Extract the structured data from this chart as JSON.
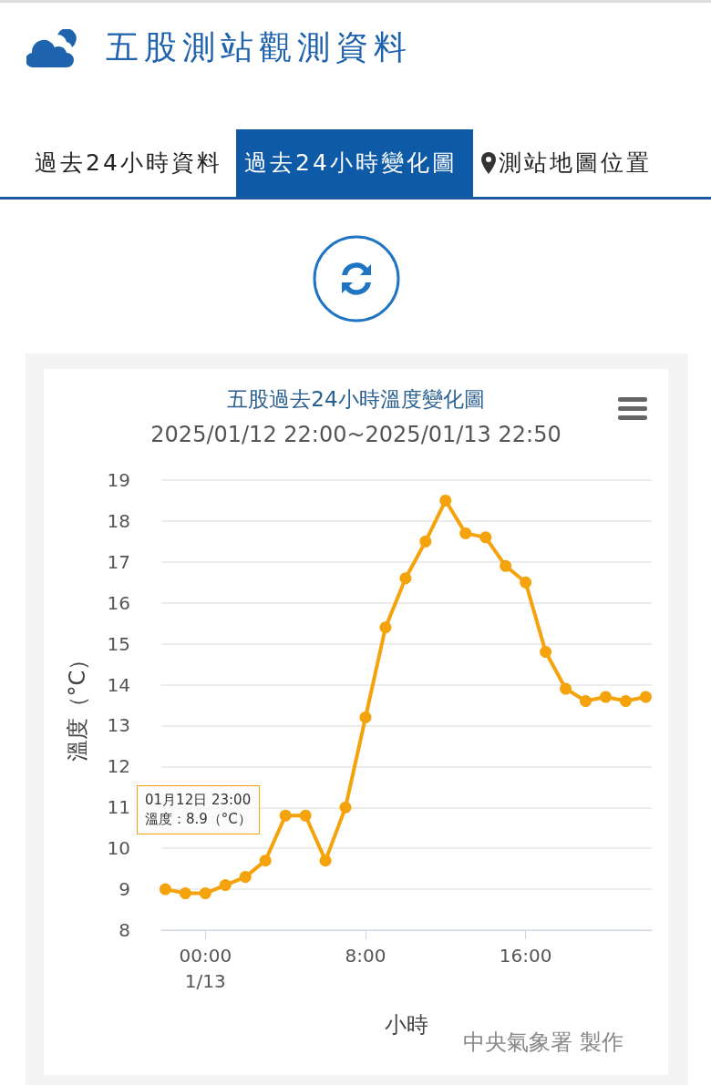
{
  "chart_data": {
    "type": "line",
    "title": "五股過去24小時溫度變化圖",
    "subtitle": "2025/01/12 22:00~2025/01/13 22:50",
    "xlabel": "小時",
    "ylabel": "溫度（°C）",
    "annotations": [
      "五股測站觀測資料",
      "過去24小時資料",
      "過去24小時變化圖",
      "測站地圖位置",
      "01月12日 23:00\n溫度：8.9（°C）",
      "中央氣象署 製作"
    ],
    "x": [
      -2,
      -1,
      0,
      1,
      2,
      3,
      4,
      5,
      6,
      7,
      8,
      9,
      10,
      11,
      12,
      13,
      14,
      15,
      16,
      17,
      18,
      19,
      20,
      21,
      22
    ],
    "series": [
      {
        "color": "#f5a30c",
        "values": [
          9.0,
          8.9,
          8.9,
          9.1,
          9.3,
          9.7,
          10.8,
          10.8,
          9.7,
          11.0,
          13.2,
          15.4,
          16.6,
          17.5,
          18.5,
          17.7,
          17.6,
          16.9,
          16.5,
          14.8,
          13.9,
          13.6,
          13.7,
          13.6,
          13.7
        ]
      }
    ],
    "xlim": [
      -2.2,
      22.3
    ],
    "xticks": [
      {
        "value": 0,
        "label": "00:00\n1/13"
      },
      {
        "value": 8,
        "label": "8:00"
      },
      {
        "value": 16,
        "label": "16:00"
      }
    ],
    "ylim": [
      8,
      19
    ],
    "yticks": [
      8,
      9,
      10,
      11,
      12,
      13,
      14,
      15,
      16,
      17,
      18,
      19
    ],
    "grid": "y",
    "marker": "circle",
    "line_style": "solid"
  }
}
